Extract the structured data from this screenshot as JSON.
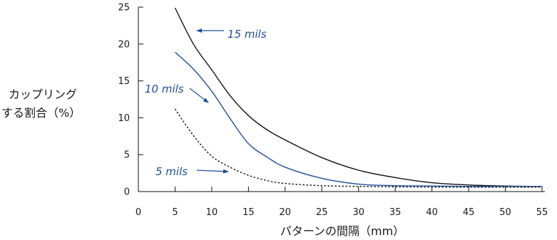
{
  "chart_data": {
    "type": "line",
    "title": "",
    "xlabel": "パターンの間隔（mm）",
    "ylabel_lines": [
      "カップリング",
      "する割合（%）"
    ],
    "xlim": [
      0,
      55
    ],
    "ylim": [
      0,
      25
    ],
    "x_ticks": [
      0,
      5,
      10,
      15,
      20,
      25,
      30,
      35,
      40,
      45,
      50,
      55
    ],
    "y_ticks": [
      0,
      5,
      10,
      15,
      20,
      25
    ],
    "grid": false,
    "legend": "none",
    "series": [
      {
        "name": "15 mils",
        "color": "#111111",
        "style": "solid",
        "x": [
          5,
          7.5,
          10,
          12.5,
          15,
          17.5,
          20,
          25,
          30,
          35,
          40,
          45,
          50,
          55
        ],
        "y": [
          24.9,
          20.0,
          16.5,
          13.0,
          10.3,
          8.4,
          7.0,
          4.6,
          2.9,
          1.9,
          1.2,
          0.9,
          0.75,
          0.7
        ]
      },
      {
        "name": "10 mils",
        "color": "#1f4f9a",
        "style": "solid",
        "x": [
          5,
          7.5,
          10,
          12.5,
          15,
          17.5,
          20,
          25,
          30,
          35,
          40,
          45,
          50,
          55
        ],
        "y": [
          18.9,
          16.6,
          13.6,
          9.9,
          6.5,
          4.7,
          3.3,
          1.8,
          1.0,
          0.8,
          0.75,
          0.7,
          0.7,
          0.7
        ]
      },
      {
        "name": "5 mils",
        "color": "#111111",
        "style": "dotted",
        "x": [
          5,
          7.5,
          10,
          12.5,
          15,
          17.5,
          20,
          25,
          30,
          35,
          40,
          45,
          50,
          55
        ],
        "y": [
          11.2,
          7.6,
          4.8,
          3.3,
          2.2,
          1.5,
          1.1,
          0.8,
          0.7,
          0.65,
          0.62,
          0.6,
          0.6,
          0.6
        ]
      }
    ],
    "annotations": [
      {
        "text": "15 mils",
        "color": "#1f4f9a"
      },
      {
        "text": "10 mils",
        "color": "#1f4f9a"
      },
      {
        "text": "5 mils",
        "color": "#1f4f9a"
      }
    ]
  }
}
